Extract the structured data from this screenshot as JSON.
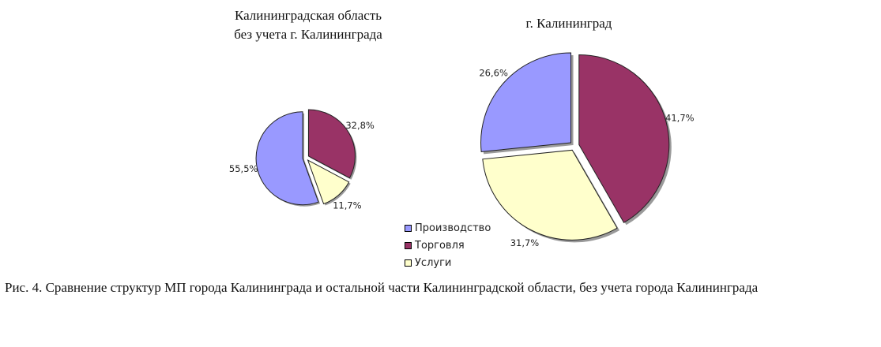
{
  "chart_data": [
    {
      "type": "pie",
      "title": "Калининградская область без учета г. Калининграда",
      "title_lines": [
        "Калининградская область",
        "без учета г. Калининграда"
      ],
      "slices": [
        {
          "category": "Торговля",
          "value": 32.8,
          "label": "32,8%",
          "color": "#993366"
        },
        {
          "category": "Услуги",
          "value": 11.7,
          "label": "11,7%",
          "color": "#ffffcc"
        },
        {
          "category": "Производство",
          "value": 55.5,
          "label": "55,5%",
          "color": "#9999ff"
        }
      ]
    },
    {
      "type": "pie",
      "title": "г. Калининград",
      "slices": [
        {
          "category": "Торговля",
          "value": 41.7,
          "label": "41,7%",
          "color": "#993366"
        },
        {
          "category": "Услуги",
          "value": 31.7,
          "label": "31,7%",
          "color": "#ffffcc"
        },
        {
          "category": "Производство",
          "value": 26.6,
          "label": "26,6%",
          "color": "#9999ff"
        }
      ]
    }
  ],
  "legend": [
    {
      "label": "Производство",
      "color": "#9999ff"
    },
    {
      "label": "Торговля",
      "color": "#993366"
    },
    {
      "label": "Услуги",
      "color": "#ffffcc"
    }
  ],
  "caption": "Рис. 4. Сравнение структур МП города Калининграда и остальной части Калининградской области, без учета города Калининграда"
}
